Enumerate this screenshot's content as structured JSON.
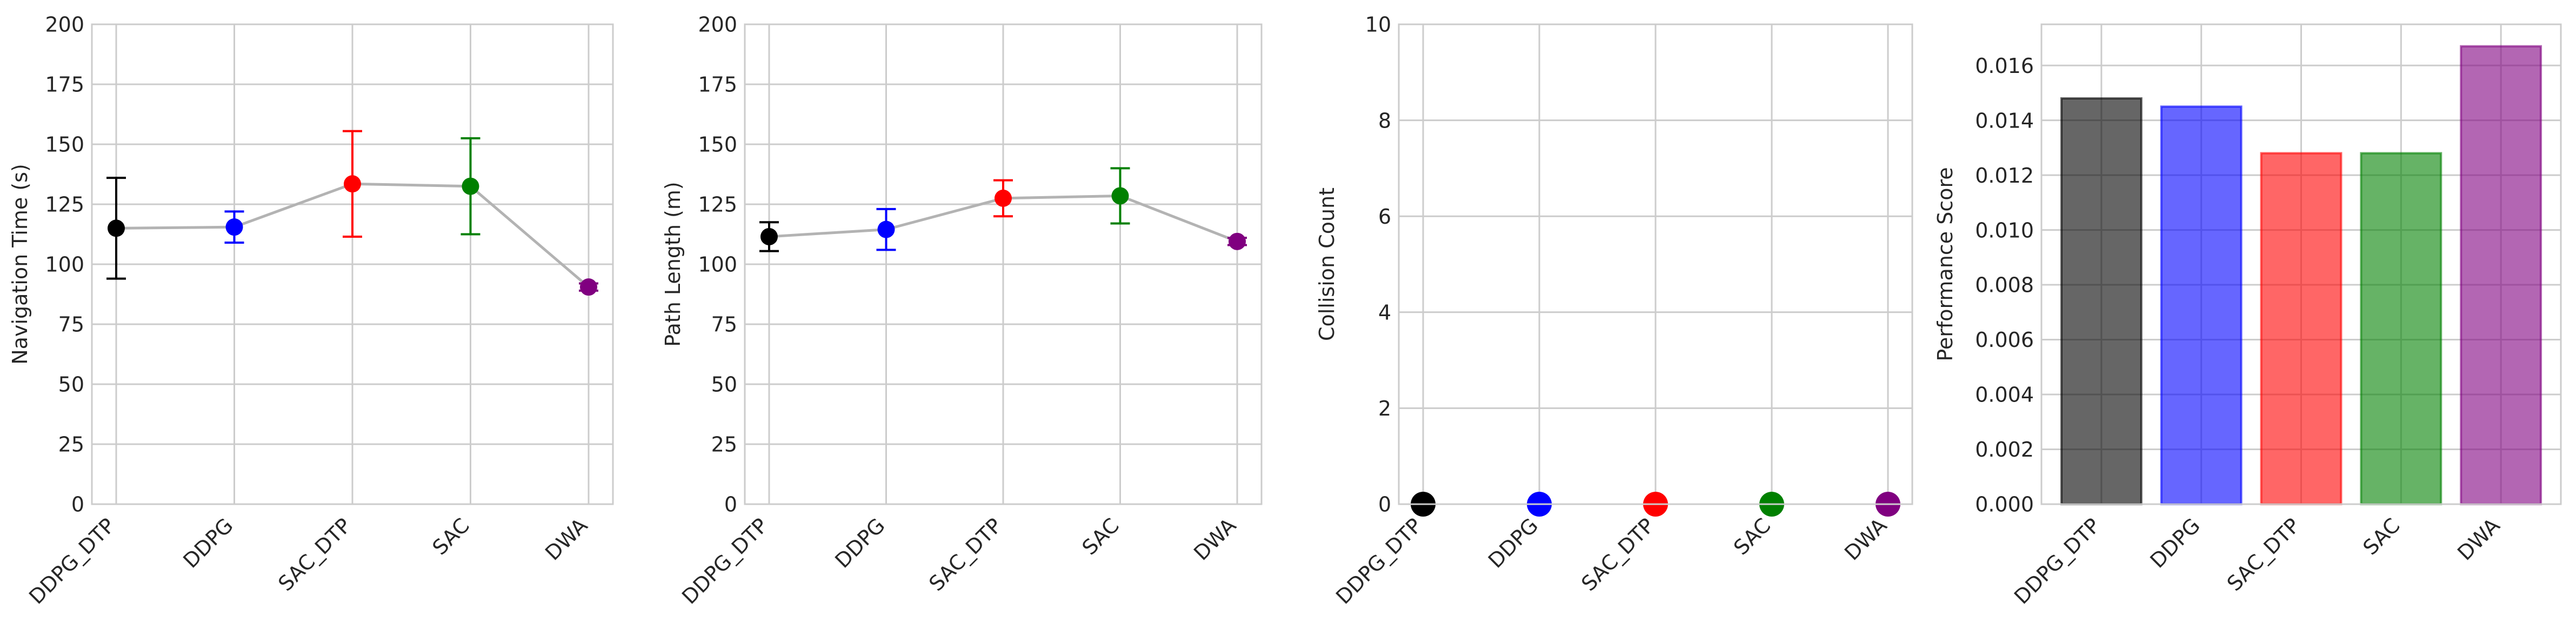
{
  "chart_data": [
    {
      "type": "line",
      "categories": [
        "DDPG_DTP",
        "DDPG",
        "SAC_DTP",
        "SAC",
        "DWA"
      ],
      "colors": [
        "#000000",
        "#0000ff",
        "#ff0000",
        "#008000",
        "#800080"
      ],
      "values": [
        115,
        115.5,
        133.5,
        132.5,
        90.5
      ],
      "errors": [
        21,
        6.5,
        22,
        20,
        1.5
      ],
      "ylabel": "Navigation Time (s)",
      "ylim": [
        0,
        200
      ],
      "yticks": [
        0,
        25,
        50,
        75,
        100,
        125,
        150,
        175,
        200
      ],
      "ytick_labels": [
        "0",
        "25",
        "50",
        "75",
        "100",
        "125",
        "150",
        "175",
        "200"
      ],
      "grid": true
    },
    {
      "type": "line",
      "categories": [
        "DDPG_DTP",
        "DDPG",
        "SAC_DTP",
        "SAC",
        "DWA"
      ],
      "colors": [
        "#000000",
        "#0000ff",
        "#ff0000",
        "#008000",
        "#800080"
      ],
      "values": [
        111.5,
        114.5,
        127.5,
        128.5,
        109.5
      ],
      "errors": [
        6,
        8.5,
        7.5,
        11.5,
        1.5
      ],
      "ylabel": "Path Length (m)",
      "ylim": [
        0,
        200
      ],
      "yticks": [
        0,
        25,
        50,
        75,
        100,
        125,
        150,
        175,
        200
      ],
      "ytick_labels": [
        "0",
        "25",
        "50",
        "75",
        "100",
        "125",
        "150",
        "175",
        "200"
      ],
      "grid": true
    },
    {
      "type": "scatter",
      "categories": [
        "DDPG_DTP",
        "DDPG",
        "SAC_DTP",
        "SAC",
        "DWA"
      ],
      "colors": [
        "#000000",
        "#0000ff",
        "#ff0000",
        "#008000",
        "#800080"
      ],
      "values": [
        0,
        0,
        0,
        0,
        0
      ],
      "ylabel": "Collision Count",
      "ylim": [
        0,
        10
      ],
      "yticks": [
        0,
        2,
        4,
        6,
        8,
        10
      ],
      "ytick_labels": [
        "0",
        "2",
        "4",
        "6",
        "8",
        "10"
      ],
      "grid": true
    },
    {
      "type": "bar",
      "categories": [
        "DDPG_DTP",
        "DDPG",
        "SAC_DTP",
        "SAC",
        "DWA"
      ],
      "colors": [
        "#000000",
        "#0000ff",
        "#ff0000",
        "#008000",
        "#800080"
      ],
      "values": [
        0.0148,
        0.0145,
        0.0128,
        0.0128,
        0.0167
      ],
      "ylabel": "Performance Score",
      "ylim": [
        0,
        0.0175
      ],
      "yticks": [
        0,
        0.002,
        0.004,
        0.006,
        0.008,
        0.01,
        0.012,
        0.014,
        0.016
      ],
      "ytick_labels": [
        "0.000",
        "0.002",
        "0.004",
        "0.006",
        "0.008",
        "0.010",
        "0.012",
        "0.014",
        "0.016"
      ],
      "grid": true
    }
  ]
}
